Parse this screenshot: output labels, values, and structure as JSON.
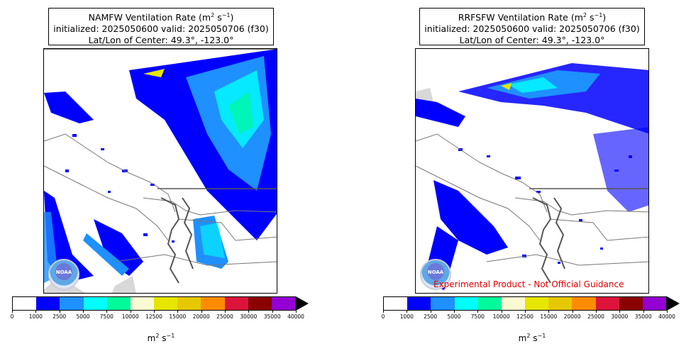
{
  "panels": [
    {
      "title_main": "NAMFW Ventilation Rate (m",
      "title_unit_sup": "2",
      "title_unit_rest": " s",
      "title_unit_sup2": "−1",
      "title_close": ")",
      "line2": "initialized: 2025050600 valid: 2025050706 (f30)",
      "line3": "Lat/Lon of Center: 49.3°, -123.0°",
      "logo_text": "NOAA"
    },
    {
      "title_main": "RRFSFW Ventilation Rate (m",
      "title_unit_sup": "2",
      "title_unit_rest": " s",
      "title_unit_sup2": "−1",
      "title_close": ")",
      "line2": "initialized: 2025050600 valid: 2025050706 (f30)",
      "line3": "Lat/Lon of Center: 49.3°, -123.0°",
      "logo_text": "NOAA",
      "disclaimer": "Experimental Product - Not Official Guidance"
    }
  ],
  "colorbar": {
    "ticks": [
      "0",
      "1000",
      "2500",
      "5000",
      "7500",
      "10000",
      "12500",
      "15000",
      "20000",
      "25000",
      "30000",
      "35000",
      "40000"
    ],
    "colors": [
      "#ffffff",
      "#0000ff",
      "#1e90ff",
      "#00ffff",
      "#00fa9a",
      "#fafad2",
      "#e6e600",
      "#e6c800",
      "#ff8c00",
      "#dc143c",
      "#8b0000",
      "#9400d3"
    ],
    "unit_base": "m",
    "unit_sup": "2",
    "unit_mid": " s",
    "unit_sup2": "−1"
  }
}
